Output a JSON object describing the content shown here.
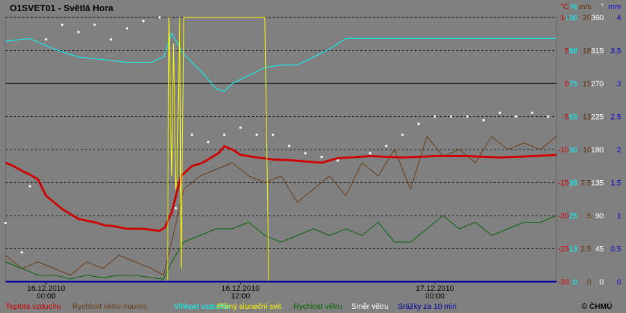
{
  "station": {
    "title": "O1SVET01 - Světlá Hora"
  },
  "copyright": "© ČHMÚ",
  "colors": {
    "background": "#808080",
    "plot_background": "#808080",
    "temperature": "#d00000",
    "gust": "#6b3a10",
    "humidity": "#00ffff",
    "sunshine": "#ffff00",
    "wind_speed": "#006400",
    "wind_direction": "#ffffff",
    "precipitation": "#0000a0",
    "right_axis_temp": "#d00000",
    "right_axis_hum": "#00ffff",
    "right_axis_wind": "#5a2a00",
    "right_axis_dir": "#ffffff",
    "right_axis_precip": "#0000c8"
  },
  "chart_data": {
    "type": "line",
    "title": "O1SVET01 - Světlá Hora",
    "x_range": [
      "2010-12-15T21:30",
      "2010-12-17T07:30"
    ],
    "x_ticks": [
      {
        "x": "2010-12-16T00:00",
        "labels": [
          "16.12.2010",
          "00:00"
        ]
      },
      {
        "x": "2010-12-16T12:00",
        "labels": [
          "16.12.2010",
          "12:00"
        ]
      },
      {
        "x": "2010-12-17T00:00",
        "labels": [
          "17.12.2010",
          "00:00"
        ]
      }
    ],
    "axes": [
      {
        "unit": "°C",
        "ticks": [
          "10",
          "5",
          "0",
          "-5",
          "-10",
          "-15",
          "-20",
          "-25",
          "-30"
        ],
        "color": "#d00000",
        "range": [
          -30,
          10
        ]
      },
      {
        "unit": "%",
        "ticks": [
          "100",
          "88",
          "75",
          "63",
          "50",
          "38",
          "25",
          "13",
          "0"
        ],
        "color": "#00ffff",
        "range": [
          0,
          100
        ]
      },
      {
        "unit": "m/s",
        "ticks": [
          "20",
          "18",
          "15",
          "13",
          "10",
          "7.5",
          "5",
          "2.5",
          "0"
        ],
        "color": "#5a2a00",
        "range": [
          0,
          20
        ]
      },
      {
        "unit": "°",
        "ticks": [
          "360",
          "315",
          "270",
          "225",
          "180",
          "135",
          "90",
          "45",
          "0"
        ],
        "color": "#ffffff",
        "range": [
          0,
          360
        ]
      },
      {
        "unit": "mm",
        "ticks": [
          "4",
          "3.5",
          "3",
          "2.5",
          "2",
          "1.5",
          "1",
          "0.5",
          "0"
        ],
        "color": "#0000c8",
        "range": [
          0,
          4
        ]
      }
    ],
    "zero_line": 0,
    "grid": "dashed-horizontal",
    "series": [
      {
        "name": "Teplota vzduchu",
        "axis": "°C",
        "color": "#d00000",
        "x": [
          "2010-12-15T21:30",
          "2010-12-15T22:00",
          "2010-12-15T22:30",
          "2010-12-15T23:00",
          "2010-12-15T23:30",
          "2010-12-16T00:00",
          "2010-12-16T01:00",
          "2010-12-16T02:00",
          "2010-12-16T03:00",
          "2010-12-16T03:40",
          "2010-12-16T04:00",
          "2010-12-16T05:00",
          "2010-12-16T06:00",
          "2010-12-16T07:00",
          "2010-12-16T07:20",
          "2010-12-16T07:45",
          "2010-12-16T08:20",
          "2010-12-16T09:00",
          "2010-12-16T09:40",
          "2010-12-16T10:00",
          "2010-12-16T10:40",
          "2010-12-16T11:00",
          "2010-12-16T11:30",
          "2010-12-16T12:00",
          "2010-12-16T13:00",
          "2010-12-16T14:00",
          "2010-12-16T15:00",
          "2010-12-16T16:00",
          "2010-12-16T17:00",
          "2010-12-16T18:00",
          "2010-12-16T20:00",
          "2010-12-16T22:00",
          "2010-12-17T00:00",
          "2010-12-17T02:00",
          "2010-12-17T04:00",
          "2010-12-17T06:00",
          "2010-12-17T07:30"
        ],
        "y": [
          -12.0,
          -12.5,
          -13.2,
          -13.8,
          -14.5,
          -17.0,
          -19.0,
          -20.5,
          -21.0,
          -21.5,
          -21.5,
          -22.0,
          -22.0,
          -22.3,
          -21.8,
          -19.5,
          -14.0,
          -12.5,
          -12.0,
          -11.5,
          -10.5,
          -9.5,
          -10.0,
          -10.8,
          -11.2,
          -11.5,
          -11.6,
          -11.8,
          -12.0,
          -11.3,
          -11.0,
          -11.2,
          -11.0,
          -11.0,
          -11.2,
          -11.0,
          -10.8
        ]
      },
      {
        "name": "Rychlost větru maxim.",
        "axis": "m/s",
        "color": "#6b3a10",
        "x": [
          "2010-12-15T21:30",
          "2010-12-15T22:30",
          "2010-12-15T23:30",
          "2010-12-16T00:30",
          "2010-12-16T01:30",
          "2010-12-16T02:30",
          "2010-12-16T03:30",
          "2010-12-16T04:30",
          "2010-12-16T05:30",
          "2010-12-16T06:30",
          "2010-12-16T07:15",
          "2010-12-16T07:45",
          "2010-12-16T08:30",
          "2010-12-16T09:30",
          "2010-12-16T10:30",
          "2010-12-16T11:30",
          "2010-12-16T12:30",
          "2010-12-16T13:30",
          "2010-12-16T14:30",
          "2010-12-16T15:30",
          "2010-12-16T16:30",
          "2010-12-16T17:30",
          "2010-12-16T18:30",
          "2010-12-16T19:30",
          "2010-12-16T20:30",
          "2010-12-16T21:30",
          "2010-12-16T22:30",
          "2010-12-16T23:30",
          "2010-12-17T00:30",
          "2010-12-17T01:30",
          "2010-12-17T02:30",
          "2010-12-17T03:30",
          "2010-12-17T04:30",
          "2010-12-17T05:30",
          "2010-12-17T06:30",
          "2010-12-17T07:30"
        ],
        "y": [
          2,
          1,
          1.5,
          1,
          0.5,
          1.5,
          1,
          2,
          1.5,
          1,
          0.5,
          3,
          7,
          8,
          8.5,
          9,
          8,
          7.5,
          8,
          6,
          7,
          8,
          6.5,
          9,
          8,
          10,
          7,
          11,
          9.5,
          10,
          9,
          11,
          10,
          10.5,
          10,
          11
        ]
      },
      {
        "name": "Vlhkost vzduchu",
        "axis": "%",
        "color": "#00ffff",
        "x": [
          "2010-12-15T21:30",
          "2010-12-15T23:00",
          "2010-12-16T00:30",
          "2010-12-16T02:00",
          "2010-12-16T03:30",
          "2010-12-16T05:00",
          "2010-12-16T06:30",
          "2010-12-16T07:15",
          "2010-12-16T07:45",
          "2010-12-16T08:30",
          "2010-12-16T09:30",
          "2010-12-16T10:30",
          "2010-12-16T11:00",
          "2010-12-16T11:30",
          "2010-12-16T12:30",
          "2010-12-16T13:30",
          "2010-12-16T14:30",
          "2010-12-16T15:30",
          "2010-12-16T16:30",
          "2010-12-16T17:30",
          "2010-12-16T18:30",
          "2010-12-16T20:00",
          "2010-12-16T22:00",
          "2010-12-17T00:00",
          "2010-12-17T02:00",
          "2010-12-17T04:00",
          "2010-12-17T06:00",
          "2010-12-17T07:30"
        ],
        "y": [
          91,
          92,
          88,
          85,
          84,
          83,
          83,
          85,
          94,
          86,
          80,
          73,
          72,
          75,
          78,
          81,
          82,
          82,
          85,
          88,
          92,
          92,
          92,
          92,
          92,
          92,
          92,
          92
        ]
      },
      {
        "name": "Přímý sluneční svit",
        "axis": "°C",
        "color": "#ffff00",
        "x": [
          "2010-12-16T07:30",
          "2010-12-16T07:35",
          "2010-12-16T07:45",
          "2010-12-16T07:52",
          "2010-12-16T08:00",
          "2010-12-16T08:05",
          "2010-12-16T08:15",
          "2010-12-16T08:20",
          "2010-12-16T08:30",
          "2010-12-16T13:30",
          "2010-12-16T13:45",
          "2010-12-16T14:30"
        ],
        "y": [
          -30,
          10,
          -14,
          6,
          -16,
          -14,
          10,
          -28,
          10,
          10,
          -30,
          -30
        ]
      },
      {
        "name": "Rychlost větru",
        "axis": "m/s",
        "color": "#006400",
        "x": [
          "2010-12-15T21:30",
          "2010-12-15T22:30",
          "2010-12-15T23:30",
          "2010-12-16T00:30",
          "2010-12-16T01:30",
          "2010-12-16T02:30",
          "2010-12-16T03:30",
          "2010-12-16T04:30",
          "2010-12-16T05:30",
          "2010-12-16T06:30",
          "2010-12-16T07:15",
          "2010-12-16T07:45",
          "2010-12-16T08:30",
          "2010-12-16T09:30",
          "2010-12-16T10:30",
          "2010-12-16T11:30",
          "2010-12-16T12:30",
          "2010-12-16T13:30",
          "2010-12-16T14:30",
          "2010-12-16T15:30",
          "2010-12-16T16:30",
          "2010-12-16T17:30",
          "2010-12-16T18:30",
          "2010-12-16T19:30",
          "2010-12-16T20:30",
          "2010-12-16T21:30",
          "2010-12-16T22:30",
          "2010-12-16T23:30",
          "2010-12-17T00:30",
          "2010-12-17T01:30",
          "2010-12-17T02:30",
          "2010-12-17T03:30",
          "2010-12-17T04:30",
          "2010-12-17T05:30",
          "2010-12-17T06:30",
          "2010-12-17T07:30"
        ],
        "y": [
          1.5,
          1,
          0.5,
          0.5,
          0.2,
          0.5,
          0.3,
          0.5,
          0.5,
          0.3,
          0.2,
          1.5,
          3,
          3.5,
          4,
          4,
          4.5,
          3.5,
          3,
          3.5,
          4,
          3.5,
          4,
          3.5,
          4.5,
          3,
          3,
          4,
          5,
          4,
          4.5,
          3.5,
          4,
          4.5,
          4.5,
          5
        ]
      },
      {
        "name": "Směr větru",
        "axis": "°",
        "color": "#ffffff",
        "style": "dots",
        "x": [
          "2010-12-15T21:30",
          "2010-12-15T22:30",
          "2010-12-15T23:00",
          "2010-12-16T00:00",
          "2010-12-16T01:00",
          "2010-12-16T02:00",
          "2010-12-16T03:00",
          "2010-12-16T04:00",
          "2010-12-16T05:00",
          "2010-12-16T06:00",
          "2010-12-16T07:00",
          "2010-12-16T08:00",
          "2010-12-16T09:00",
          "2010-12-16T10:00",
          "2010-12-16T11:00",
          "2010-12-16T12:00",
          "2010-12-16T13:00",
          "2010-12-16T14:00",
          "2010-12-16T15:00",
          "2010-12-16T16:00",
          "2010-12-16T17:00",
          "2010-12-16T18:00",
          "2010-12-16T19:00",
          "2010-12-16T20:00",
          "2010-12-16T21:00",
          "2010-12-16T22:00",
          "2010-12-16T23:00",
          "2010-12-17T00:00",
          "2010-12-17T01:00",
          "2010-12-17T02:00",
          "2010-12-17T03:00",
          "2010-12-17T04:00",
          "2010-12-17T05:00",
          "2010-12-17T06:00",
          "2010-12-17T07:00"
        ],
        "y": [
          80,
          40,
          130,
          330,
          350,
          340,
          350,
          330,
          345,
          355,
          360,
          100,
          200,
          190,
          200,
          210,
          200,
          200,
          185,
          175,
          170,
          165,
          170,
          175,
          185,
          200,
          215,
          225,
          225,
          225,
          220,
          230,
          225,
          230,
          225
        ]
      },
      {
        "name": "Srážky za 10 min",
        "axis": "mm",
        "color": "#0000a0",
        "x": [
          "2010-12-15T21:30",
          "2010-12-17T07:30"
        ],
        "y": [
          0,
          0
        ]
      }
    ]
  }
}
